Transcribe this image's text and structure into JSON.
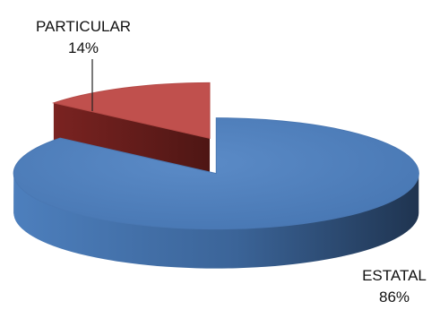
{
  "chart_data": {
    "type": "pie",
    "style": "3d-exploded",
    "slices": [
      {
        "name": "PARTICULAR",
        "value": 14,
        "value_label": "14%",
        "color": "#c0504d"
      },
      {
        "name": "ESTATAL",
        "value": 86,
        "value_label": "86%",
        "color": "#4f81bd"
      }
    ]
  }
}
